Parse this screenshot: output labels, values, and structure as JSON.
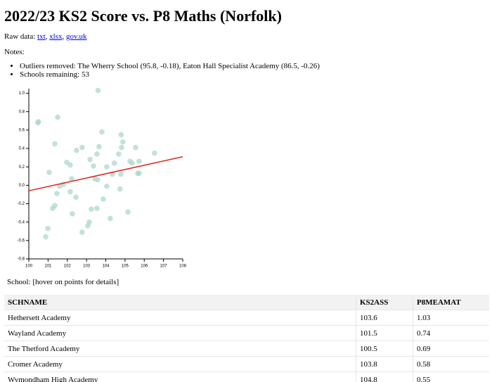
{
  "header": {
    "title": "2022/23 KS2 Score vs. P8 Maths (Norfolk)",
    "raw_label": "Raw data:",
    "links": [
      "txt",
      "xlsx",
      "gov.uk"
    ],
    "notes_label": "Notes:",
    "notes": [
      "Outliers removed: The Wherry School (95.8, -0.18), Eaton Hall Specialist Academy (86.5, -0.26)",
      "Schools remaining: 53"
    ]
  },
  "chart_data": {
    "type": "scatter",
    "color": "#a8d5c6",
    "x": [
      100.47,
      100.99,
      100.88,
      101.06,
      101.24,
      101.35,
      101.35,
      101.5,
      101.46,
      101.6,
      101.79,
      101.97,
      102.15,
      102.15,
      102.23,
      102.26,
      102.45,
      102.48,
      102.77,
      102.77,
      103.07,
      103.14,
      103.18,
      103.25,
      103.36,
      103.43,
      103.6,
      103.54,
      103.54,
      103.58,
      103.65,
      103.8,
      103.87,
      104.05,
      104.05,
      104.23,
      104.34,
      104.45,
      104.67,
      104.8,
      104.82,
      104.89,
      104.74,
      104.78,
      105.15,
      105.26,
      105.37,
      105.55,
      105.66,
      105.73,
      105.73,
      106.53,
      100.5
    ],
    "values": [
      0.68,
      -0.47,
      -0.56,
      0.14,
      -0.25,
      -0.22,
      0.45,
      0.74,
      -0.09,
      -0.01,
      0.01,
      0.25,
      0.22,
      -0.07,
      0.07,
      -0.31,
      -0.13,
      0.38,
      0.41,
      -0.51,
      -0.44,
      -0.4,
      0.28,
      -0.26,
      0.21,
      0.07,
      1.03,
      0.34,
      -0.25,
      0.06,
      0.42,
      0.58,
      -0.15,
      0.2,
      -0.01,
      -0.36,
      0.12,
      0.24,
      0.34,
      0.55,
      0.41,
      0.47,
      -0.04,
      0.12,
      -0.29,
      0.26,
      0.24,
      0.41,
      0.13,
      0.13,
      0.26,
      0.35,
      0.69
    ],
    "trendline": {
      "color": "#e0201b",
      "x": [
        100,
        108
      ],
      "y": [
        -0.06,
        0.31
      ]
    },
    "xlim": [
      100,
      108
    ],
    "xticks": [
      100,
      101,
      102,
      103,
      104,
      105,
      106,
      107,
      108
    ],
    "ylim": [
      -0.8,
      1.05
    ],
    "yticks": [
      -0.8,
      -0.6,
      -0.4,
      -0.2,
      {
        "value": 0,
        "label": "0.0"
      },
      0.2,
      0.4,
      0.6,
      0.8,
      {
        "value": 1,
        "label": "1.0"
      }
    ]
  },
  "hover": "School: [hover on points for details]",
  "table": {
    "columns": [
      "SCHNAME",
      "KS2ASS",
      "P8MEAMAT"
    ],
    "rows": [
      [
        "Hethersett Academy",
        "103.6",
        "1.03"
      ],
      [
        "Wayland Academy",
        "101.5",
        "0.74"
      ],
      [
        "The Thetford Academy",
        "100.5",
        "0.69"
      ],
      [
        "Cromer Academy",
        "103.8",
        "0.58"
      ],
      [
        "Wymondham High Academy",
        "104.8",
        "0.55"
      ]
    ]
  }
}
